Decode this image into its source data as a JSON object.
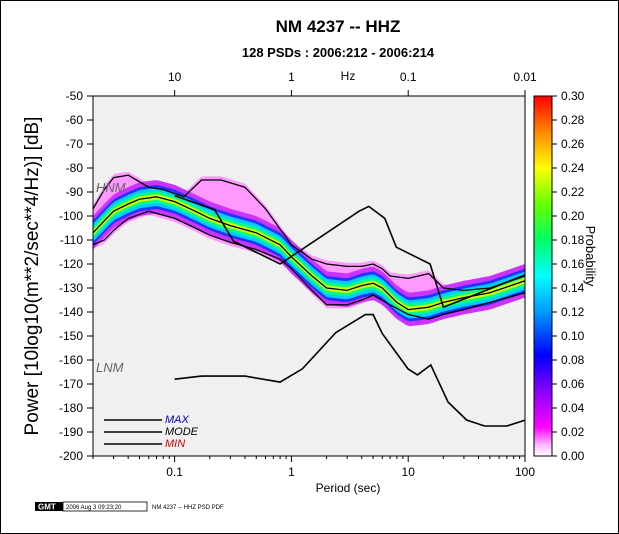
{
  "chart_data": {
    "type": "heatmap",
    "title": "NM 4237 -- HHZ",
    "subtitle": "128 PSDs : 2006:212 - 2006:214",
    "xlabel": "Period (sec)",
    "ylabel": "Power [10log10(m**2/sec**4/Hz)] [dB]",
    "top_axis_label": "Hz",
    "xscale": "log",
    "xlim": [
      0.02,
      100
    ],
    "ylim": [
      -200,
      -50
    ],
    "x_ticks": [
      "0.1",
      "1",
      "10",
      "100"
    ],
    "top_ticks": [
      "10",
      "1",
      "0.1",
      "0.01"
    ],
    "y_ticks": [
      "-50",
      "-60",
      "-70",
      "-80",
      "-90",
      "-100",
      "-110",
      "-120",
      "-130",
      "-140",
      "-150",
      "-160",
      "-170",
      "-180",
      "-190",
      "-200"
    ],
    "colorbar": {
      "label": "Probability",
      "range": [
        0,
        0.3
      ],
      "ticks": [
        "0.30",
        "0.28",
        "0.26",
        "0.24",
        "0.22",
        "0.20",
        "0.18",
        "0.16",
        "0.14",
        "0.12",
        "0.10",
        "0.08",
        "0.06",
        "0.04",
        "0.02",
        "0.00"
      ],
      "colors": [
        "#ffffff",
        "#ff00ff",
        "#aa00ff",
        "#0000ff",
        "#0088ff",
        "#00ffff",
        "#00ff66",
        "#66ff00",
        "#ffff00",
        "#ffaa00",
        "#ff0000"
      ]
    },
    "annotations": {
      "hnm": "HNM",
      "lnm": "LNM"
    },
    "legend": [
      {
        "name": "MAX",
        "color": "#0000cc"
      },
      {
        "name": "MODE",
        "color": "#000000"
      },
      {
        "name": "MIN",
        "color": "#dd0000"
      }
    ],
    "series": [
      {
        "name": "HNM",
        "color": "#000000",
        "x": [
          0.1,
          0.22,
          0.32,
          0.8,
          3.8,
          4.6,
          6.3,
          7.9,
          15.4,
          20,
          354
        ],
        "y": [
          -91.5,
          -97.4,
          -110.5,
          -120,
          -98,
          -96,
          -101,
          -113,
          -120,
          -138,
          -114
        ]
      },
      {
        "name": "LNM",
        "color": "#000000",
        "x": [
          0.1,
          0.17,
          0.4,
          0.8,
          1.24,
          2.4,
          4.3,
          5,
          6,
          10,
          12,
          15.6,
          21.9,
          31.6,
          45,
          70,
          101
        ],
        "y": [
          -168,
          -166.7,
          -166.7,
          -169.2,
          -163.7,
          -148.6,
          -141.1,
          -141.1,
          -149,
          -163.8,
          -166.2,
          -162.1,
          -177.5,
          -185,
          -187.5,
          -187.5,
          -185
        ]
      },
      {
        "name": "MODE",
        "color": "#000000",
        "x": [
          0.02,
          0.025,
          0.03,
          0.04,
          0.05,
          0.07,
          0.1,
          0.15,
          0.2,
          0.3,
          0.5,
          0.8,
          1.0,
          1.5,
          2,
          3,
          4,
          5,
          6,
          8,
          10,
          15,
          20,
          30,
          50,
          100
        ],
        "y": [
          -107,
          -102,
          -98,
          -95,
          -93,
          -92,
          -94,
          -98,
          -101,
          -104,
          -107,
          -112,
          -117,
          -125,
          -130,
          -131,
          -129,
          -128,
          -130,
          -136,
          -139,
          -138,
          -136,
          -134,
          -132,
          -127
        ]
      },
      {
        "name": "MAX",
        "color": "#000000",
        "x": [
          0.02,
          0.025,
          0.03,
          0.04,
          0.06,
          0.08,
          0.12,
          0.17,
          0.25,
          0.4,
          0.6,
          1.0,
          1.5,
          2,
          3,
          4,
          5,
          6,
          7,
          10,
          15,
          20,
          30,
          50,
          100
        ],
        "y": [
          -97,
          -89,
          -84,
          -83,
          -88,
          -89,
          -92,
          -85,
          -85,
          -88,
          -97,
          -112,
          -118,
          -120,
          -121,
          -121,
          -120,
          -122,
          -125,
          -126,
          -124,
          -130,
          -131,
          -130,
          -125
        ]
      },
      {
        "name": "MIN",
        "color": "#000000",
        "x": [
          0.02,
          0.025,
          0.03,
          0.04,
          0.06,
          0.1,
          0.15,
          0.2,
          0.3,
          0.5,
          0.8,
          1.0,
          1.5,
          2,
          3,
          4,
          5,
          7,
          10,
          15,
          20,
          30,
          50,
          100
        ],
        "y": [
          -112,
          -110,
          -106,
          -101,
          -98,
          -101,
          -105,
          -108,
          -111,
          -114,
          -118,
          -122,
          -131,
          -137,
          -137,
          -135,
          -133,
          -137,
          -141,
          -143,
          -141,
          -139,
          -136,
          -132
        ]
      }
    ],
    "density_band": {
      "x": [
        0.02,
        0.025,
        0.03,
        0.04,
        0.05,
        0.07,
        0.1,
        0.15,
        0.2,
        0.3,
        0.5,
        0.8,
        1.0,
        1.5,
        2,
        3,
        4,
        5,
        6,
        8,
        10,
        15,
        20,
        30,
        50,
        100
      ],
      "center": [
        -107,
        -102,
        -98,
        -95,
        -93,
        -92,
        -94,
        -98,
        -101,
        -104,
        -107,
        -112,
        -117,
        -125,
        -130,
        -131,
        -129,
        -128,
        -130,
        -136,
        -139,
        -138,
        -136,
        -134,
        -132,
        -127
      ]
    }
  },
  "footer": {
    "logo_text": "GMT",
    "timestamp": "2006 Aug 3 09:23:20",
    "caption": "NM 4237 -- HHZ PSD PDF"
  }
}
